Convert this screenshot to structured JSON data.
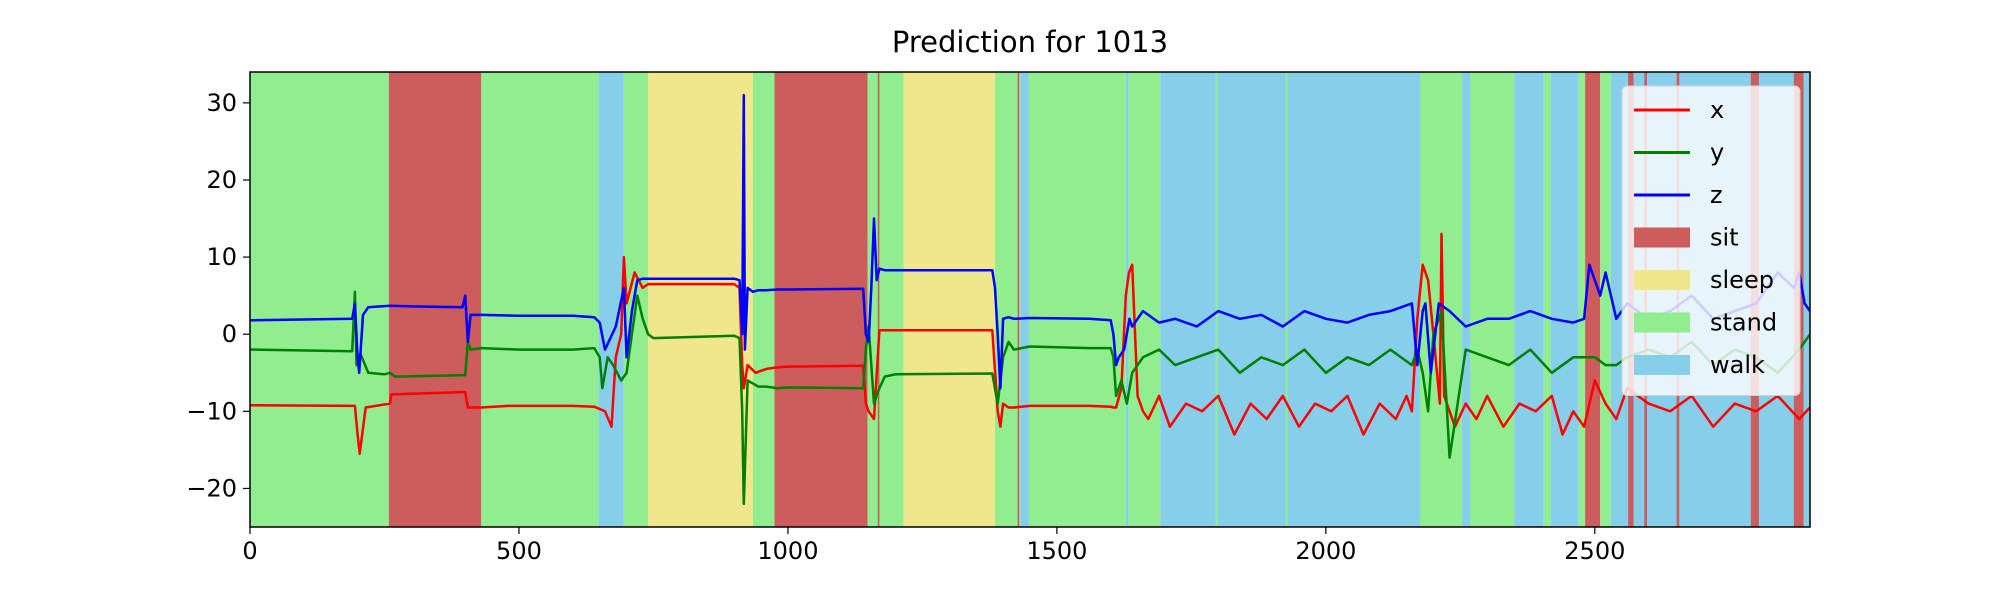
{
  "chart_data": {
    "type": "line",
    "title": "Prediction for 1013",
    "xlabel": "",
    "ylabel": "",
    "xlim": [
      0,
      2900
    ],
    "ylim": [
      -25,
      34
    ],
    "xticks": [
      0,
      500,
      1000,
      1500,
      2000,
      2500
    ],
    "yticks": [
      -20,
      -10,
      0,
      10,
      20,
      30
    ],
    "xtick_labels": [
      "0",
      "500",
      "1000",
      "1500",
      "2000",
      "2500"
    ],
    "ytick_labels": [
      "−20",
      "−10",
      "0",
      "10",
      "20",
      "30"
    ],
    "grid": false,
    "legend_position": "top-right",
    "colors": {
      "x": "#ff0000",
      "y": "#008000",
      "z": "#0000ff",
      "sit": "#cd5c5c",
      "sleep": "#f0e68c",
      "stand": "#90ee90",
      "walk": "#87ceeb"
    },
    "legend": [
      {
        "key": "x",
        "label": "x",
        "kind": "line"
      },
      {
        "key": "y",
        "label": "y",
        "kind": "line"
      },
      {
        "key": "z",
        "label": "z",
        "kind": "line"
      },
      {
        "key": "sit",
        "label": "sit",
        "kind": "patch"
      },
      {
        "key": "sleep",
        "label": "sleep",
        "kind": "patch"
      },
      {
        "key": "stand",
        "label": "stand",
        "kind": "patch"
      },
      {
        "key": "walk",
        "label": "walk",
        "kind": "patch"
      }
    ],
    "activity_segments": [
      {
        "label": "stand",
        "start": 0,
        "end": 258
      },
      {
        "label": "sit",
        "start": 258,
        "end": 430
      },
      {
        "label": "stand",
        "start": 430,
        "end": 648
      },
      {
        "label": "walk",
        "start": 648,
        "end": 695
      },
      {
        "label": "stand",
        "start": 695,
        "end": 740
      },
      {
        "label": "sleep",
        "start": 740,
        "end": 935
      },
      {
        "label": "stand",
        "start": 935,
        "end": 975
      },
      {
        "label": "sit",
        "start": 975,
        "end": 1148
      },
      {
        "label": "stand",
        "start": 1148,
        "end": 1215
      },
      {
        "label": "sleep",
        "start": 1215,
        "end": 1385
      },
      {
        "label": "stand",
        "start": 1385,
        "end": 1432
      },
      {
        "label": "walk",
        "start": 1432,
        "end": 1448
      },
      {
        "label": "stand",
        "start": 1448,
        "end": 1628
      },
      {
        "label": "walk",
        "start": 1628,
        "end": 1633
      },
      {
        "label": "stand",
        "start": 1633,
        "end": 1692
      },
      {
        "label": "walk",
        "start": 1692,
        "end": 2175
      },
      {
        "label": "stand",
        "start": 2175,
        "end": 2253
      },
      {
        "label": "walk",
        "start": 2253,
        "end": 2268
      },
      {
        "label": "stand",
        "start": 2268,
        "end": 2350
      },
      {
        "label": "walk",
        "start": 2350,
        "end": 2405
      },
      {
        "label": "stand",
        "start": 2405,
        "end": 2418
      },
      {
        "label": "walk",
        "start": 2418,
        "end": 2470
      },
      {
        "label": "stand",
        "start": 2470,
        "end": 2482
      },
      {
        "label": "sit",
        "start": 2482,
        "end": 2510
      },
      {
        "label": "stand",
        "start": 2510,
        "end": 2530
      },
      {
        "label": "walk",
        "start": 2530,
        "end": 2900
      },
      {
        "label": "sit",
        "start": 2562,
        "end": 2572
      },
      {
        "label": "sit",
        "start": 2592,
        "end": 2597
      },
      {
        "label": "sit",
        "start": 2652,
        "end": 2657
      },
      {
        "label": "sit",
        "start": 2790,
        "end": 2805
      },
      {
        "label": "sit",
        "start": 2870,
        "end": 2888
      },
      {
        "label": "sit",
        "start": 1167,
        "end": 1170
      },
      {
        "label": "sit",
        "start": 1427,
        "end": 1430
      },
      {
        "label": "stand",
        "start": 1795,
        "end": 1799
      },
      {
        "label": "stand",
        "start": 1925,
        "end": 1929
      }
    ],
    "series": [
      {
        "name": "x",
        "x": [
          0,
          195,
          200,
          204,
          215,
          260,
          263,
          400,
          405,
          410,
          430,
          480,
          600,
          640,
          660,
          672,
          680,
          690,
          695,
          700,
          715,
          730,
          740,
          750,
          900,
          910,
          915,
          918,
          925,
          940,
          960,
          980,
          1000,
          1140,
          1145,
          1150,
          1160,
          1170,
          1180,
          1200,
          1380,
          1390,
          1395,
          1400,
          1410,
          1420,
          1450,
          1560,
          1600,
          1605,
          1610,
          1620,
          1628,
          1634,
          1640,
          1650,
          1660,
          1670,
          1690,
          1710,
          1740,
          1770,
          1800,
          1830,
          1860,
          1890,
          1920,
          1950,
          1980,
          2010,
          2040,
          2070,
          2100,
          2130,
          2150,
          2160,
          2170,
          2180,
          2190,
          2200,
          2212,
          2215,
          2220,
          2240,
          2260,
          2280,
          2300,
          2330,
          2360,
          2390,
          2420,
          2440,
          2460,
          2480,
          2500,
          2520,
          2540,
          2560,
          2600,
          2640,
          2680,
          2720,
          2760,
          2800,
          2840,
          2880,
          2900
        ],
        "y": [
          -9.2,
          -9.3,
          -13,
          -15.5,
          -9.5,
          -9.0,
          -7.8,
          -7.5,
          -9.5,
          -9.5,
          -9.5,
          -9.3,
          -9.3,
          -9.4,
          -10,
          -12,
          -3,
          0,
          10,
          4,
          8,
          6,
          6.5,
          6.5,
          6.5,
          6.0,
          -4,
          -7,
          -4,
          -5,
          -4.5,
          -4.3,
          -4.2,
          -4.1,
          -9,
          -10,
          -11,
          0.5,
          0.5,
          0.5,
          0.5,
          -10,
          -12,
          -9,
          -9.5,
          -9.5,
          -9.3,
          -9.3,
          -9.4,
          -9.5,
          -9.5,
          -7,
          5,
          8,
          9,
          -8,
          -10,
          -11,
          -8,
          -12,
          -9,
          -10,
          -8,
          -13,
          -9,
          -11,
          -8,
          -12,
          -9,
          -10,
          -8,
          -13,
          -9,
          -11,
          -8,
          -10,
          2,
          9,
          7,
          0,
          -9,
          13,
          -8,
          -12,
          -9,
          -11,
          -8,
          -12,
          -9,
          -10,
          -8,
          -13,
          -10,
          -12,
          -6,
          -9,
          -11,
          -7,
          -9,
          -10,
          -8,
          -12,
          -9,
          -10,
          -8,
          -11,
          -9.5
        ]
      },
      {
        "name": "y",
        "x": [
          0,
          190,
          195,
          198,
          205,
          220,
          250,
          260,
          270,
          400,
          405,
          410,
          430,
          500,
          600,
          640,
          650,
          655,
          665,
          675,
          690,
          700,
          710,
          720,
          730,
          740,
          750,
          900,
          910,
          915,
          918,
          925,
          945,
          960,
          980,
          1000,
          1140,
          1145,
          1150,
          1160,
          1170,
          1180,
          1200,
          1380,
          1390,
          1395,
          1400,
          1410,
          1420,
          1450,
          1560,
          1600,
          1605,
          1610,
          1620,
          1630,
          1640,
          1660,
          1690,
          1720,
          1760,
          1800,
          1840,
          1880,
          1920,
          1960,
          2000,
          2040,
          2080,
          2120,
          2160,
          2170,
          2180,
          2190,
          2200,
          2215,
          2230,
          2260,
          2300,
          2340,
          2380,
          2420,
          2460,
          2500,
          2520,
          2540,
          2560,
          2600,
          2640,
          2680,
          2720,
          2760,
          2800,
          2840,
          2880,
          2900
        ],
        "y": [
          -2.0,
          -2.2,
          5.5,
          -4.0,
          -2.5,
          -5.0,
          -5.2,
          -5.0,
          -5.5,
          -5.3,
          -1.0,
          -2.0,
          -1.8,
          -2.0,
          -2.0,
          -1.8,
          -3.0,
          -7.0,
          -3.0,
          -4.0,
          -6.0,
          -5.0,
          0,
          5.0,
          2.0,
          0,
          -0.5,
          -0.2,
          -0.5,
          -10,
          -22,
          -6,
          -6.8,
          -6.8,
          -7.0,
          -6.9,
          -7.0,
          -2,
          1,
          -9,
          -7,
          -5.5,
          -5.2,
          -5.1,
          -9,
          -6,
          -3,
          -1,
          -2,
          -1.6,
          -1.8,
          -1.8,
          -3,
          -8,
          -6,
          -9,
          -5,
          -3,
          -2,
          -4,
          -3,
          -2,
          -5,
          -3,
          -4,
          -2,
          -5,
          -3,
          -4,
          -2,
          -4,
          -2,
          -5,
          -10,
          0,
          3,
          -16,
          -2,
          -3,
          -4,
          -2,
          -5,
          -3,
          -3,
          -4,
          -4,
          -3,
          -2,
          -3,
          -1,
          -4,
          -2,
          -3,
          -5,
          -2,
          0
        ]
      },
      {
        "name": "z",
        "x": [
          0,
          190,
          195,
          200,
          203,
          210,
          220,
          260,
          300,
          395,
          400,
          405,
          410,
          430,
          500,
          600,
          640,
          650,
          660,
          680,
          695,
          700,
          710,
          720,
          730,
          740,
          750,
          900,
          910,
          915,
          918,
          920,
          925,
          935,
          945,
          960,
          980,
          1000,
          1140,
          1145,
          1150,
          1155,
          1160,
          1165,
          1170,
          1180,
          1200,
          1380,
          1385,
          1390,
          1395,
          1400,
          1410,
          1420,
          1450,
          1560,
          1600,
          1605,
          1610,
          1615,
          1625,
          1635,
          1640,
          1650,
          1660,
          1690,
          1720,
          1760,
          1800,
          1840,
          1880,
          1920,
          1960,
          2000,
          2040,
          2080,
          2120,
          2160,
          2170,
          2180,
          2185,
          2195,
          2210,
          2230,
          2260,
          2300,
          2340,
          2380,
          2420,
          2460,
          2480,
          2490,
          2500,
          2510,
          2520,
          2540,
          2560,
          2600,
          2640,
          2680,
          2720,
          2760,
          2800,
          2840,
          2870,
          2880,
          2890,
          2900
        ],
        "y": [
          1.8,
          2.0,
          4.0,
          -3.0,
          -5.0,
          2.5,
          3.5,
          3.7,
          3.6,
          3.5,
          5.0,
          -1.0,
          2.5,
          2.5,
          2.4,
          2.4,
          2.2,
          1.5,
          -2.0,
          1.0,
          6.0,
          -3.0,
          3.0,
          7.0,
          7.2,
          7.2,
          7.2,
          7.2,
          7.0,
          0,
          31,
          -2,
          6.0,
          5.5,
          5.7,
          5.7,
          5.8,
          5.8,
          5.9,
          0,
          -1,
          6,
          15,
          7,
          8.5,
          8.3,
          8.3,
          8.3,
          6,
          0,
          -7,
          2,
          2.2,
          2.0,
          2.1,
          2.0,
          1.8,
          0,
          -4,
          -3,
          -2,
          2,
          1,
          2,
          3,
          1.5,
          2,
          1,
          3,
          2,
          2.5,
          1,
          3,
          2,
          1.5,
          2.5,
          3,
          4,
          -4,
          3,
          4,
          -5,
          4,
          3,
          1,
          2,
          2,
          3,
          2,
          1.5,
          2,
          9,
          7,
          5,
          8,
          2,
          4,
          2,
          3,
          5,
          2,
          3,
          4,
          8,
          6,
          8,
          4,
          3
        ]
      }
    ]
  }
}
